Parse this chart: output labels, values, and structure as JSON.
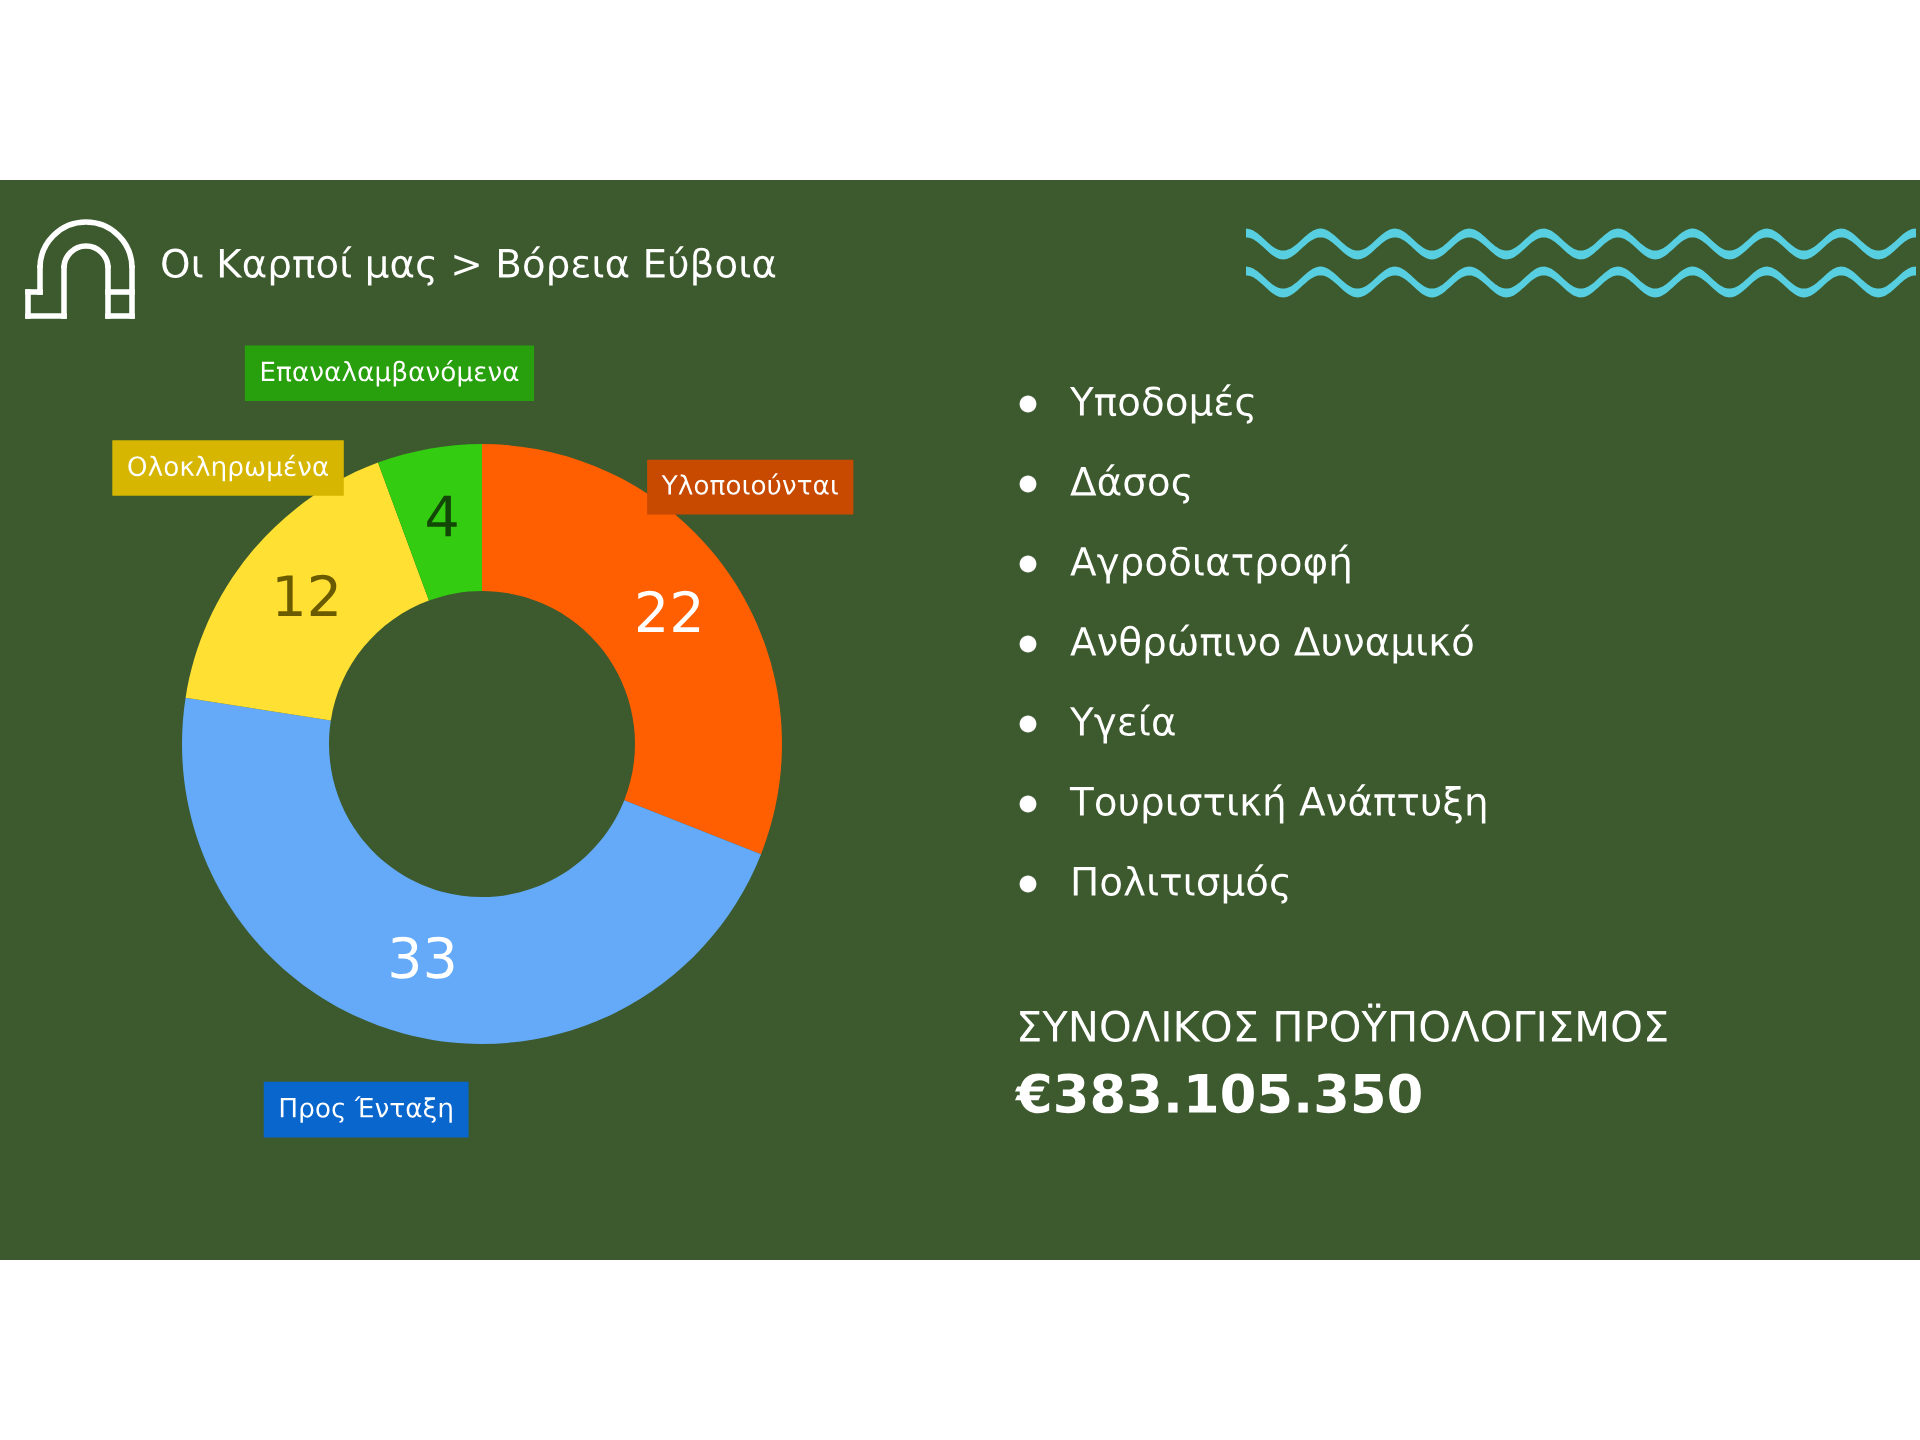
{
  "chart_data": {
    "type": "donut",
    "title": "Οι Καρποί μας > Βόρεια Εύβοια",
    "categories": [
      "Υλοποιούνται",
      "Προς Ένταξη",
      "Ολοκληρωμένα",
      "Επαναλαμβανόμενα"
    ],
    "values": [
      22,
      33,
      12,
      4
    ],
    "colors": [
      "#ff5f00",
      "#64aaf8",
      "#ffe033",
      "#33cc11"
    ],
    "data_labels": true,
    "annotations": [
      "Υποδομές",
      "Δάσος",
      "Αγροδιατροφή",
      "Ανθρώπινο Δυναμικό",
      "Υγεία",
      "Τουριστική Ανάπτυξη",
      "Πολιτισμός",
      "ΣΥΝΟΛΙΚΟΣ ΠΡΟΫΠΟΛΟΓΙΣΜΟΣ",
      "€383.105.350"
    ]
  }
}
